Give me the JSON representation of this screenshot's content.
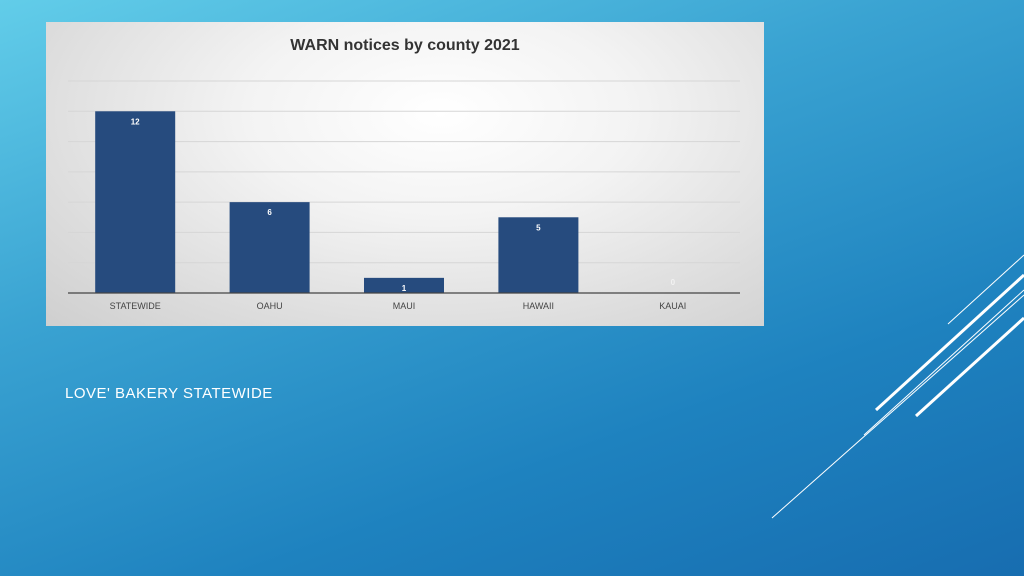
{
  "slide": {
    "caption": "LOVE' BAKERY STATEWIDE"
  },
  "chart_data": {
    "type": "bar",
    "title": "WARN notices by county 2021",
    "categories": [
      "STATEWIDE",
      "OAHU",
      "MAUI",
      "HAWAII",
      "KAUAI"
    ],
    "values": [
      12,
      6,
      1,
      5,
      0
    ],
    "xlabel": "",
    "ylabel": "",
    "ylim": [
      0,
      14
    ],
    "grid": true,
    "legend": "none",
    "bar_color": "#264b7e"
  }
}
